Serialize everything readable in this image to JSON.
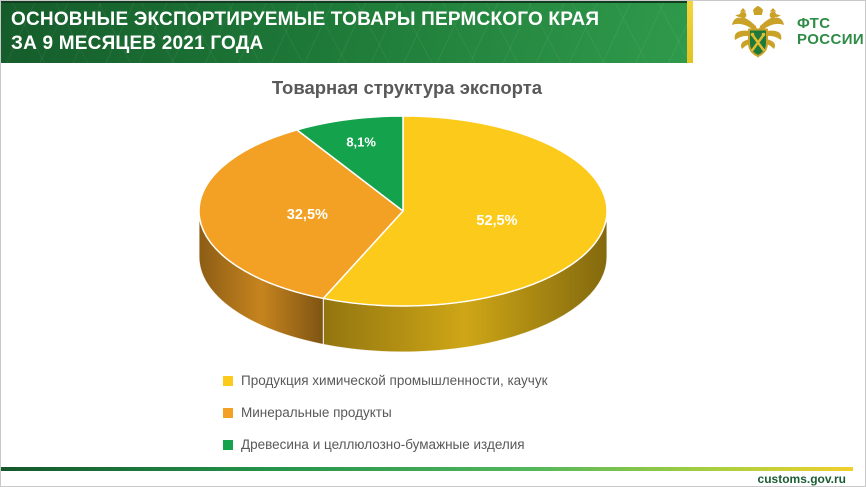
{
  "header": {
    "title_lines": [
      "ОСНОВНЫЕ ЭКСПОРТИРУЕМЫЕ ТОВАРЫ ПЕРМСКОГО КРАЯ",
      "ЗА 9 МЕСЯЦЕВ 2021 ГОДА"
    ],
    "logo_line1": "ФТС",
    "logo_line2": "РОССИИ"
  },
  "chart_data": {
    "type": "pie",
    "style": "3d",
    "title": "Товарная структура экспорта",
    "unit": "%",
    "labels": [
      "Продукция химической промышленности, каучук",
      "Минеральные продукты",
      "Древесина и целлюлозно-бумажные изделия"
    ],
    "values": [
      52.5,
      32.5,
      8.1
    ],
    "value_labels": [
      "52,5%",
      "32,5%",
      "8,1%"
    ],
    "colors": [
      "#FBCA1B",
      "#F2A124",
      "#14A24C"
    ],
    "legend_position": "bottom-left"
  },
  "footer": {
    "site": "customs.gov.ru"
  },
  "theme": {
    "header_green_dark": "#155C2B",
    "header_green_light": "#2F9A4B",
    "accent_yellow": "#EFD23A",
    "header_text": "#FFFFFF",
    "chart_title_color": "#595959",
    "legend_text_color": "#595959",
    "footer_url_color": "#1A5D33",
    "logo_text_color": "#2E8C46",
    "emblem_gold": "#C9A227",
    "emblem_shield_green": "#1E7A3C"
  }
}
